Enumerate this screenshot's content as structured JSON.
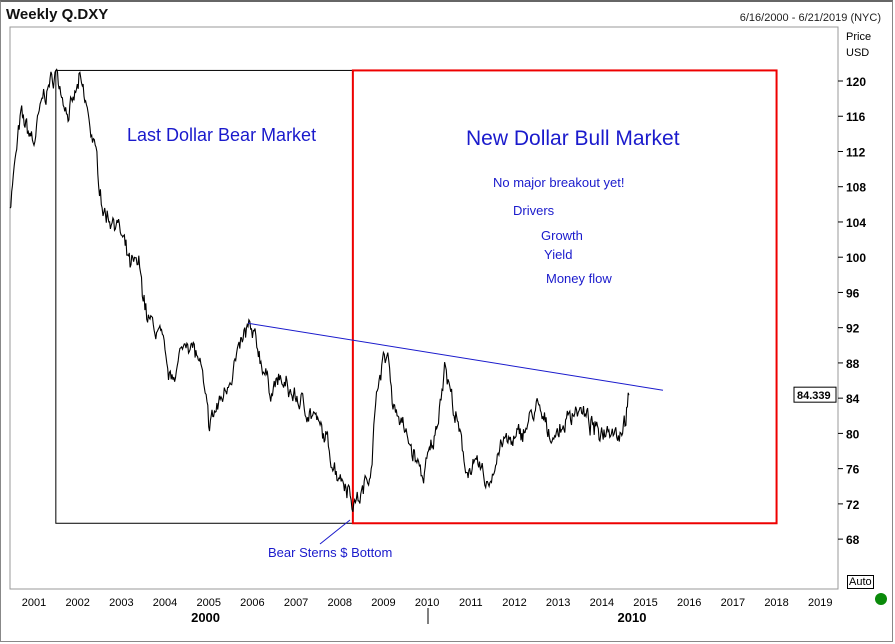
{
  "header": {
    "title": "Weekly Q.DXY",
    "date_range": "6/16/2000 - 6/21/2019 (NYC)"
  },
  "controls": {
    "auto_label": "Auto"
  },
  "colors": {
    "price": "#000000",
    "trendline": "#1a1acc",
    "bear_box": "#000000",
    "bull_box": "#ee0000",
    "annotation": "#1a1acc",
    "status": "#0a8a0a"
  },
  "annotations": {
    "bear_market": "Last Dollar Bear Market",
    "bull_market": "New Dollar Bull Market",
    "no_breakout": "No major breakout yet!",
    "drivers": "Drivers",
    "growth": "Growth",
    "yield": "Yield",
    "money_flow": "Money flow",
    "bear_sterns": "Bear Sterns $ Bottom"
  },
  "chart_data": {
    "type": "line",
    "title": "Weekly Q.DXY",
    "ylabel": "Price USD",
    "ylabel_lines": [
      "Price",
      "USD"
    ],
    "xlim": [
      2000.45,
      2019.4
    ],
    "ylim": [
      65,
      124
    ],
    "y_ticks": [
      68,
      72,
      76,
      80,
      84,
      88,
      92,
      96,
      100,
      104,
      108,
      112,
      116,
      120
    ],
    "x_ticks": [
      "2001",
      "2002",
      "2003",
      "2004",
      "2005",
      "2006",
      "2007",
      "2008",
      "2009",
      "2010",
      "2011",
      "2012",
      "2013",
      "2014",
      "2015",
      "2016",
      "2017",
      "2018",
      "2019"
    ],
    "decade_labels": [
      "2000",
      "2010"
    ],
    "last_price": "84.339",
    "series": [
      {
        "name": "Q.DXY",
        "x": [
          2000.45,
          2000.7,
          2001.0,
          2001.2,
          2001.5,
          2001.8,
          2002.05,
          2002.2,
          2002.4,
          2002.6,
          2002.9,
          2003.2,
          2003.4,
          2003.6,
          2003.9,
          2004.1,
          2004.3,
          2004.5,
          2004.8,
          2005.0,
          2005.3,
          2005.6,
          2005.9,
          2006.1,
          2006.4,
          2006.6,
          2007.0,
          2007.4,
          2007.7,
          2007.9,
          2008.2,
          2008.3,
          2008.5,
          2008.7,
          2008.9,
          2009.1,
          2009.2,
          2009.5,
          2009.9,
          2010.2,
          2010.4,
          2010.6,
          2010.9,
          2011.2,
          2011.4,
          2011.7,
          2012.0,
          2012.3,
          2012.5,
          2012.8,
          2013.0,
          2013.4,
          2013.6,
          2013.9,
          2014.2,
          2014.4,
          2014.55,
          2014.62
        ],
        "y": [
          106,
          116,
          113,
          118,
          121,
          116,
          120,
          117,
          112,
          105,
          104,
          99,
          99,
          93,
          91,
          86,
          88,
          91,
          88,
          81,
          84,
          88,
          92,
          90,
          85,
          86,
          84,
          82,
          79,
          76,
          74,
          72,
          73,
          76,
          87,
          89,
          84,
          80,
          75,
          80,
          88,
          83,
          76,
          76,
          74,
          79,
          79,
          81,
          83,
          80,
          80,
          83,
          82,
          80,
          81,
          80,
          82,
          84.34
        ]
      }
    ],
    "trendline": {
      "from": [
        2005.9,
        92.5
      ],
      "to": [
        2015.4,
        84.9
      ]
    },
    "boxes": [
      {
        "name": "bear-market-box",
        "x": [
          2001.5,
          2008.3
        ],
        "y": [
          69.8,
          121.2
        ]
      },
      {
        "name": "bull-market-box",
        "x": [
          2008.3,
          2018.0
        ],
        "y": [
          69.8,
          121.2
        ]
      }
    ],
    "grid": false
  }
}
